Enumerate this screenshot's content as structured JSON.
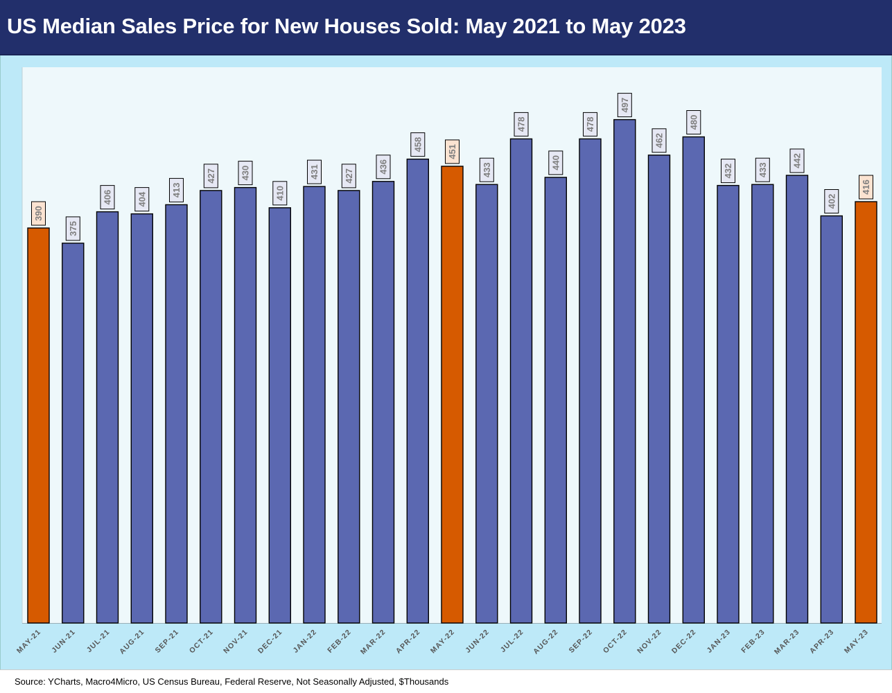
{
  "header": {
    "title": "US Median Sales Price for New Houses Sold: May 2021 to May 2023"
  },
  "footer": {
    "source": "Source: YCharts, Macro4Micro, US Census Bureau, Federal Reserve, Not Seasonally Adjusted, $Thousands"
  },
  "colors": {
    "title_bg": "#222f6b",
    "chart_bg": "#bde9f8",
    "plot_bg": "#eef8fb",
    "bar_default": "#5b68b1",
    "bar_highlight": "#d65a00",
    "label_bg_default": "#e6e8f4",
    "label_bg_highlight": "#fbe3d1"
  },
  "chart_data": {
    "type": "bar",
    "title": "US Median Sales Price for New Houses Sold: May 2021 to May 2023",
    "xlabel": "",
    "ylabel": "",
    "unit": "$Thousands",
    "categories": [
      "MAY-21",
      "JUN-21",
      "JUL-21",
      "AUG-21",
      "SEP-21",
      "OCT-21",
      "NOV-21",
      "DEC-21",
      "JAN-22",
      "FEB-22",
      "MAR-22",
      "APR-22",
      "MAY-22",
      "JUN-22",
      "JUL-22",
      "AUG-22",
      "SEP-22",
      "OCT-22",
      "NOV-22",
      "DEC-22",
      "JAN-23",
      "FEB-23",
      "MAR-23",
      "APR-23",
      "MAY-23"
    ],
    "values": [
      390,
      375,
      406,
      404,
      413,
      427,
      430,
      410,
      431,
      427,
      436,
      458,
      451,
      433,
      478,
      440,
      478,
      497,
      462,
      480,
      432,
      433,
      442,
      402,
      416
    ],
    "highlight": [
      "MAY-21",
      "MAY-22",
      "MAY-23"
    ],
    "ylim": [
      0,
      540
    ],
    "grid": false,
    "data_labels": true
  }
}
